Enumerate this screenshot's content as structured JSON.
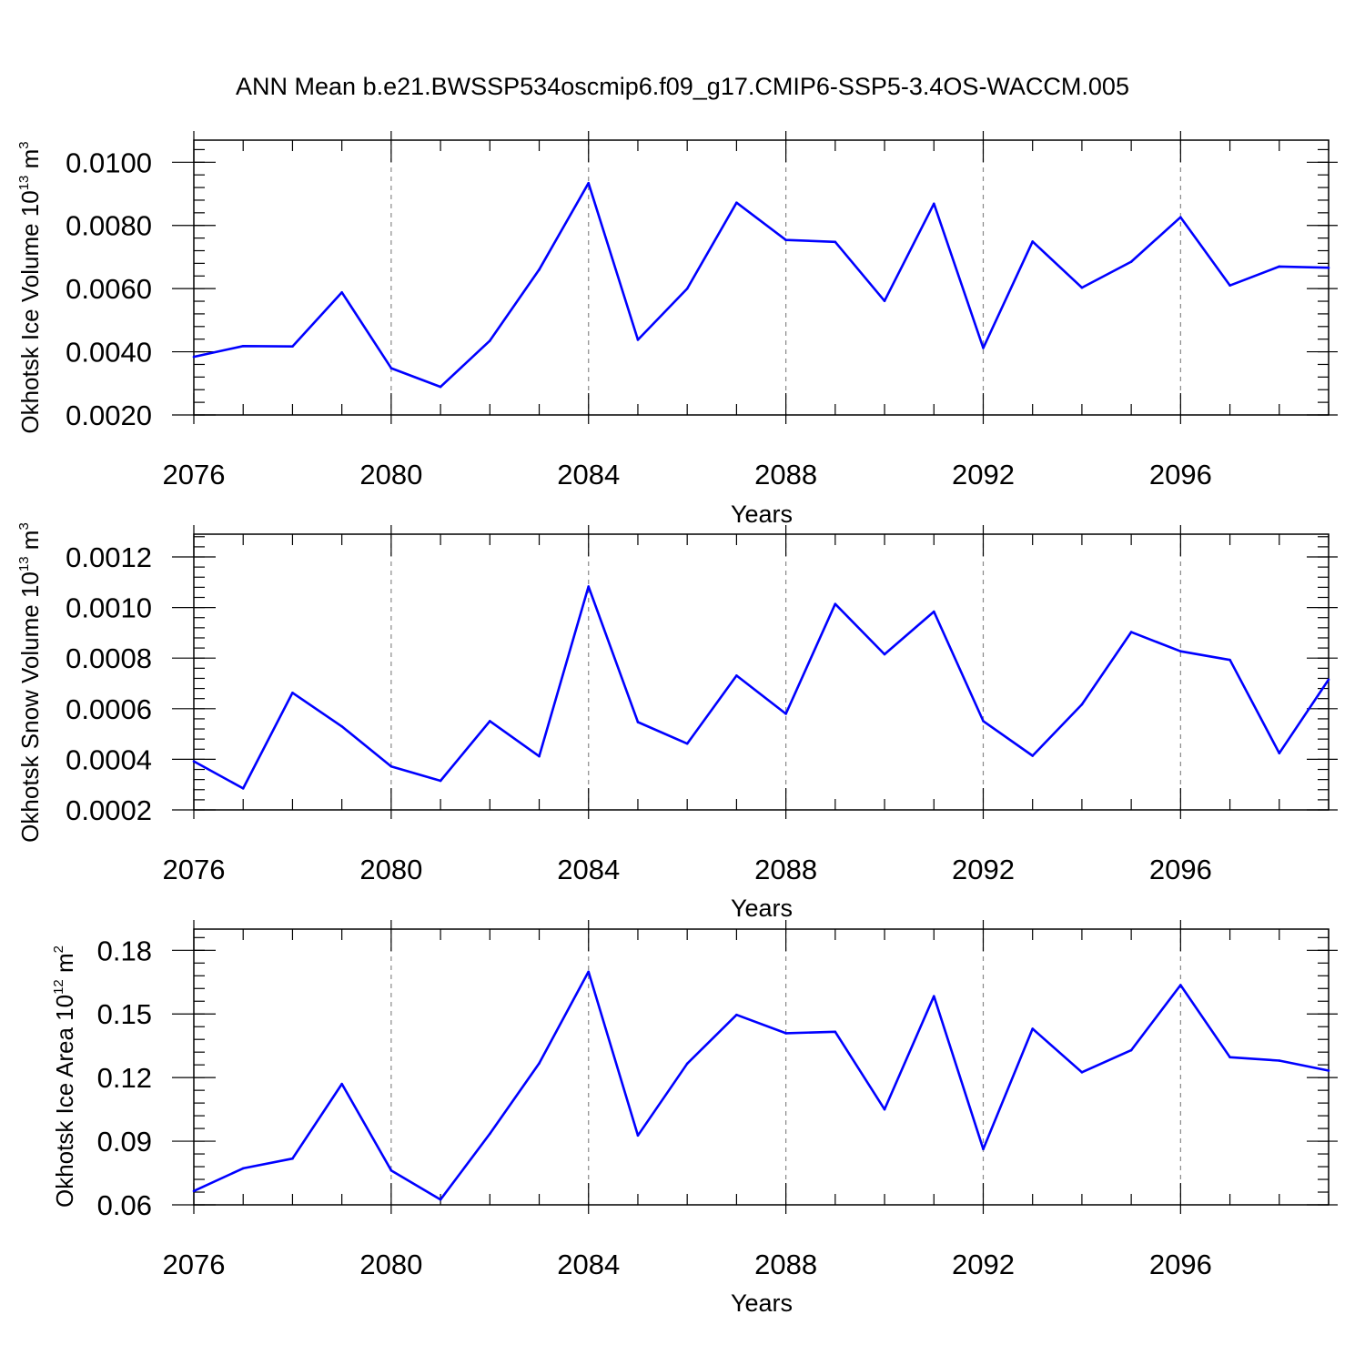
{
  "title": "ANN Mean b.e21.BWSSP534oscmip6.f09_g17.CMIP6-SSP5-3.4OS-WACCM.005",
  "colors": {
    "line": "#0000ff",
    "grid": "#888888",
    "axis": "#000000"
  },
  "chart_data": [
    {
      "type": "line",
      "ylabel_main": "Okhotsk Ice Volume 10",
      "ylabel_exp": "13",
      "ylabel_unit": "m",
      "ylabel_unit_exp": "3",
      "xlabel": "Years",
      "xlim": [
        2076,
        2099
      ],
      "ylim": [
        0.002,
        0.0107
      ],
      "xticks": [
        2076,
        2080,
        2084,
        2088,
        2092,
        2096
      ],
      "xtick_labels": [
        "2076",
        "2080",
        "2084",
        "2088",
        "2092",
        "2096"
      ],
      "yticks": [
        0.002,
        0.004,
        0.006,
        0.008,
        0.01
      ],
      "ytick_labels": [
        "0.0020",
        "0.0040",
        "0.0060",
        "0.0080",
        "0.0100"
      ],
      "yminor_step": 0.0004,
      "x": [
        2076,
        2077,
        2078,
        2079,
        2080,
        2081,
        2082,
        2083,
        2084,
        2085,
        2086,
        2087,
        2088,
        2089,
        2090,
        2091,
        2092,
        2093,
        2094,
        2095,
        2096,
        2097,
        2098,
        2099
      ],
      "values": [
        0.00384,
        0.00418,
        0.00417,
        0.00588,
        0.00348,
        0.00289,
        0.00435,
        0.0066,
        0.00934,
        0.00438,
        0.006,
        0.00872,
        0.00754,
        0.00748,
        0.00561,
        0.00869,
        0.00412,
        0.00749,
        0.00603,
        0.00685,
        0.00826,
        0.0061,
        0.0067,
        0.00666
      ]
    },
    {
      "type": "line",
      "ylabel_main": "Okhotsk Snow Volume 10",
      "ylabel_exp": "13",
      "ylabel_unit": "m",
      "ylabel_unit_exp": "3",
      "xlabel": "Years",
      "xlim": [
        2076,
        2099
      ],
      "ylim": [
        0.0002,
        0.00129
      ],
      "xticks": [
        2076,
        2080,
        2084,
        2088,
        2092,
        2096
      ],
      "xtick_labels": [
        "2076",
        "2080",
        "2084",
        "2088",
        "2092",
        "2096"
      ],
      "yticks": [
        0.0002,
        0.0004,
        0.0006,
        0.0008,
        0.001,
        0.0012
      ],
      "ytick_labels": [
        "0.0002",
        "0.0004",
        "0.0006",
        "0.0008",
        "0.0010",
        "0.0012"
      ],
      "yminor_step": 4e-05,
      "x": [
        2076,
        2077,
        2078,
        2079,
        2080,
        2081,
        2082,
        2083,
        2084,
        2085,
        2086,
        2087,
        2088,
        2089,
        2090,
        2091,
        2092,
        2093,
        2094,
        2095,
        2096,
        2097,
        2098,
        2099
      ],
      "values": [
        0.000392,
        0.000285,
        0.000663,
        0.00053,
        0.000372,
        0.000315,
        0.000551,
        0.000412,
        0.001083,
        0.000547,
        0.000462,
        0.000731,
        0.00058,
        0.001014,
        0.000815,
        0.000984,
        0.000551,
        0.000414,
        0.000617,
        0.000903,
        0.000827,
        0.000793,
        0.000424,
        0.000715
      ]
    },
    {
      "type": "line",
      "ylabel_main": "Okhotsk Ice Area 10",
      "ylabel_exp": "12",
      "ylabel_unit": "m",
      "ylabel_unit_exp": "2",
      "xlabel": "Years",
      "xlim": [
        2076,
        2099
      ],
      "ylim": [
        0.06,
        0.19
      ],
      "xticks": [
        2076,
        2080,
        2084,
        2088,
        2092,
        2096
      ],
      "xtick_labels": [
        "2076",
        "2080",
        "2084",
        "2088",
        "2092",
        "2096"
      ],
      "yticks": [
        0.06,
        0.09,
        0.12,
        0.15,
        0.18
      ],
      "ytick_labels": [
        "0.06",
        "0.09",
        "0.12",
        "0.15",
        "0.18"
      ],
      "yminor_step": 0.006,
      "x": [
        2076,
        2077,
        2078,
        2079,
        2080,
        2081,
        2082,
        2083,
        2084,
        2085,
        2086,
        2087,
        2088,
        2089,
        2090,
        2091,
        2092,
        2093,
        2094,
        2095,
        2096,
        2097,
        2098,
        2099
      ],
      "values": [
        0.0665,
        0.0772,
        0.0818,
        0.117,
        0.0762,
        0.0625,
        0.0935,
        0.1267,
        0.1699,
        0.0927,
        0.1266,
        0.1496,
        0.1409,
        0.1416,
        0.105,
        0.1584,
        0.0863,
        0.143,
        0.1225,
        0.1329,
        0.1636,
        0.1296,
        0.128,
        0.1233
      ]
    }
  ]
}
